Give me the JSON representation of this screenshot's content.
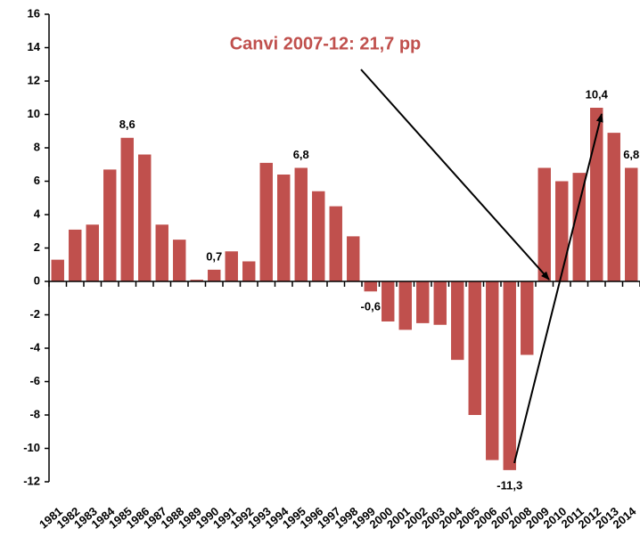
{
  "chart_data": {
    "type": "bar",
    "categories": [
      "1981",
      "1982",
      "1983",
      "1984",
      "1985",
      "1986",
      "1987",
      "1988",
      "1989",
      "1990",
      "1991",
      "1992",
      "1993",
      "1994",
      "1995",
      "1996",
      "1997",
      "1998",
      "1999",
      "2000",
      "2001",
      "2002",
      "2003",
      "2004",
      "2005",
      "2006",
      "2007",
      "2008",
      "2009",
      "2010",
      "2011",
      "2012",
      "2013",
      "2014"
    ],
    "values": [
      1.3,
      3.1,
      3.4,
      6.7,
      8.6,
      7.6,
      3.4,
      2.5,
      0.1,
      0.7,
      1.8,
      1.2,
      7.1,
      6.4,
      6.8,
      5.4,
      4.5,
      2.7,
      -0.6,
      -2.4,
      -2.9,
      -2.5,
      -2.6,
      -4.7,
      -8.0,
      -10.7,
      -11.3,
      -4.4,
      6.8,
      6.0,
      6.5,
      10.4,
      8.9,
      6.8
    ],
    "value_labels": [
      null,
      null,
      null,
      null,
      "8,6",
      null,
      null,
      null,
      null,
      "0,7",
      null,
      null,
      null,
      null,
      "6,8",
      null,
      null,
      null,
      "-0,6",
      null,
      null,
      null,
      null,
      null,
      null,
      null,
      "-11,3",
      null,
      null,
      null,
      null,
      "10,4",
      null,
      "6,8"
    ],
    "color": "#c0504d",
    "ylim": [
      -12,
      16
    ],
    "yticks": [
      -12,
      -10,
      -8,
      -6,
      -4,
      -2,
      0,
      2,
      4,
      6,
      8,
      10,
      12,
      14,
      16
    ],
    "annotation": "Canvi 2007-12: 21,7 pp"
  }
}
